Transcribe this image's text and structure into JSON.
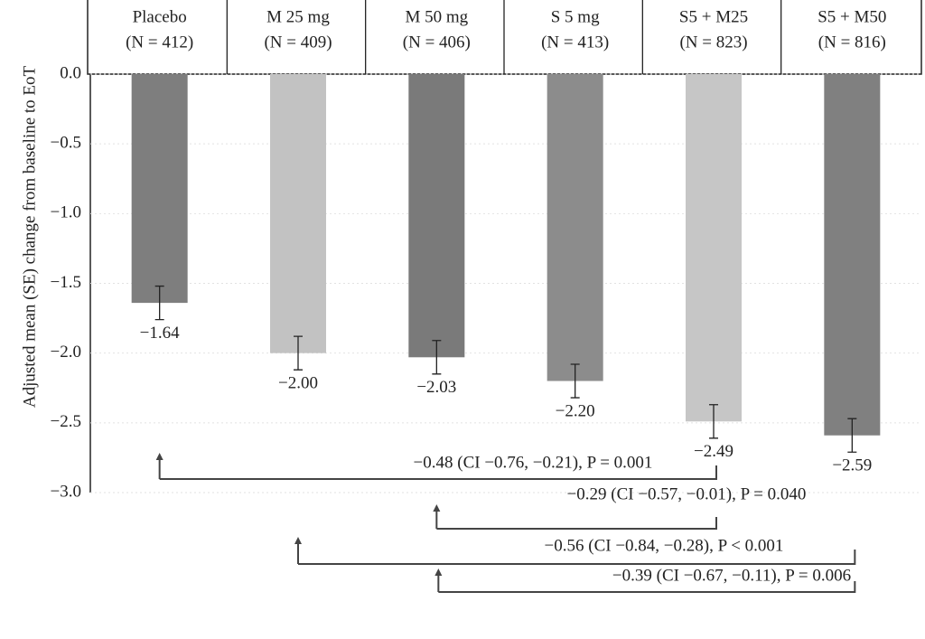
{
  "chart_data": {
    "type": "bar",
    "y_label": "Adjusted mean (SE) change from baseline to EoT",
    "categories": [
      "Placebo",
      "M 25 mg",
      "M 50 mg",
      "S 5 mg",
      "S5 + M25",
      "S5 + M50"
    ],
    "n_labels": [
      "(N = 412)",
      "(N = 409)",
      "(N = 406)",
      "(N = 413)",
      "(N = 823)",
      "(N = 816)"
    ],
    "values": [
      -1.64,
      -2.0,
      -2.03,
      -2.2,
      -2.49,
      -2.59
    ],
    "value_labels": [
      "−1.64",
      "−2.00",
      "−2.03",
      "−2.20",
      "−2.49",
      "−2.59"
    ],
    "errors": [
      0.12,
      0.12,
      0.12,
      0.12,
      0.12,
      0.12
    ],
    "colors": [
      "#7e7e7e",
      "#c2c2c2",
      "#7a7a7a",
      "#8c8c8c",
      "#c6c6c6",
      "#808080"
    ],
    "ylim": [
      -3,
      0
    ],
    "yticks": [
      {
        "value": 0,
        "label": "0.0"
      },
      {
        "value": -0.5,
        "label": "−0.5"
      },
      {
        "value": -1,
        "label": "−1.0"
      },
      {
        "value": -1.5,
        "label": "−1.5"
      },
      {
        "value": -2,
        "label": "−2.0"
      },
      {
        "value": -2.5,
        "label": "−2.5"
      },
      {
        "value": -3,
        "label": "−3.0"
      }
    ],
    "grid": true,
    "comparisons": [
      "−0.48 (CI −0.76, −0.21), P = 0.001",
      "−0.29 (CI −0.57, −0.01), P = 0.040",
      "−0.56 (CI −0.84, −0.28), P < 0.001",
      "−0.39 (CI −0.67, −0.11), P = 0.006"
    ]
  }
}
